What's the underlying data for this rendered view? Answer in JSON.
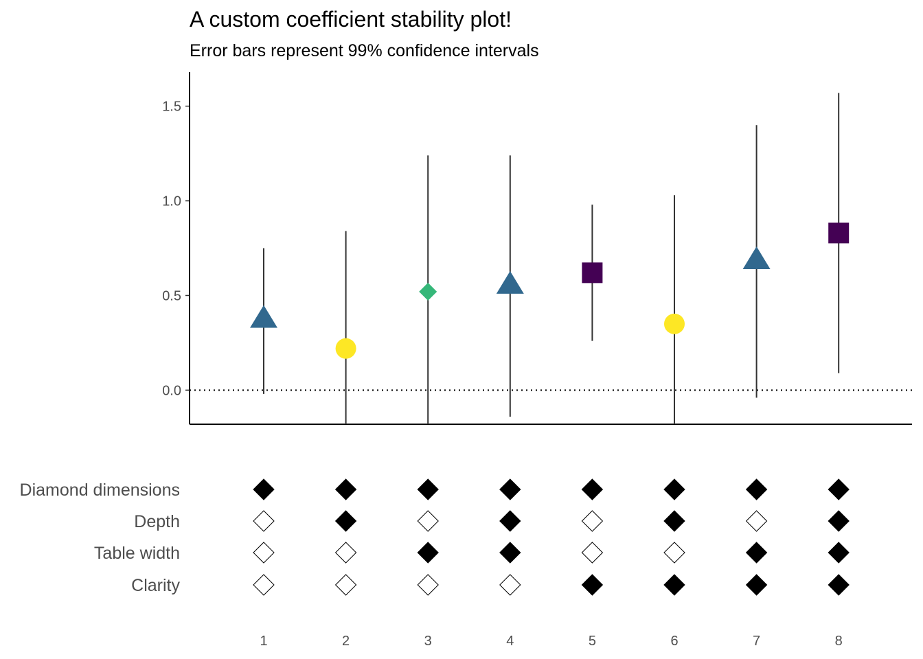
{
  "chart_data": {
    "type": "scatter",
    "title": "A custom coefficient stability plot!",
    "subtitle": "Error bars represent 99% confidence intervals",
    "xlabel": "",
    "ylabel": "",
    "ylim": [
      -0.18,
      1.68
    ],
    "y_ticks": [
      0.0,
      0.5,
      1.0,
      1.5
    ],
    "y_tick_labels": [
      "0.0",
      "0.5",
      "1.0",
      "1.5"
    ],
    "reference_line": {
      "y": 0.0,
      "style": "dotted"
    },
    "grid": false,
    "legend": "none",
    "x": [
      1,
      2,
      3,
      4,
      5,
      6,
      7,
      8
    ],
    "x_tick_labels": [
      "1",
      "2",
      "3",
      "4",
      "5",
      "6",
      "7",
      "8"
    ],
    "estimates": [
      {
        "model": 1,
        "estimate": 0.38,
        "ci_low": -0.02,
        "ci_high": 0.75,
        "shape": "triangle",
        "color": "#31688e"
      },
      {
        "model": 2,
        "estimate": 0.22,
        "ci_low": -0.18,
        "ci_high": 0.84,
        "shape": "circle",
        "color": "#fde725"
      },
      {
        "model": 3,
        "estimate": 0.52,
        "ci_low": -0.18,
        "ci_high": 1.24,
        "shape": "diamond",
        "color": "#35b779"
      },
      {
        "model": 4,
        "estimate": 0.56,
        "ci_low": -0.14,
        "ci_high": 1.24,
        "shape": "triangle",
        "color": "#31688e"
      },
      {
        "model": 5,
        "estimate": 0.62,
        "ci_low": 0.26,
        "ci_high": 0.98,
        "shape": "square",
        "color": "#440154"
      },
      {
        "model": 6,
        "estimate": 0.35,
        "ci_low": -0.18,
        "ci_high": 1.03,
        "shape": "circle",
        "color": "#fde725"
      },
      {
        "model": 7,
        "estimate": 0.69,
        "ci_low": -0.04,
        "ci_high": 1.4,
        "shape": "triangle",
        "color": "#31688e"
      },
      {
        "model": 8,
        "estimate": 0.83,
        "ci_low": 0.09,
        "ci_high": 1.57,
        "shape": "square",
        "color": "#440154"
      }
    ],
    "specification": {
      "rows": [
        "Diamond dimensions",
        "Depth",
        "Table width",
        "Clarity"
      ],
      "included": [
        [
          true,
          true,
          true,
          true,
          true,
          true,
          true,
          true
        ],
        [
          false,
          true,
          false,
          true,
          false,
          true,
          false,
          true
        ],
        [
          false,
          false,
          true,
          true,
          false,
          false,
          true,
          true
        ],
        [
          false,
          false,
          false,
          false,
          true,
          true,
          true,
          true
        ]
      ]
    }
  }
}
